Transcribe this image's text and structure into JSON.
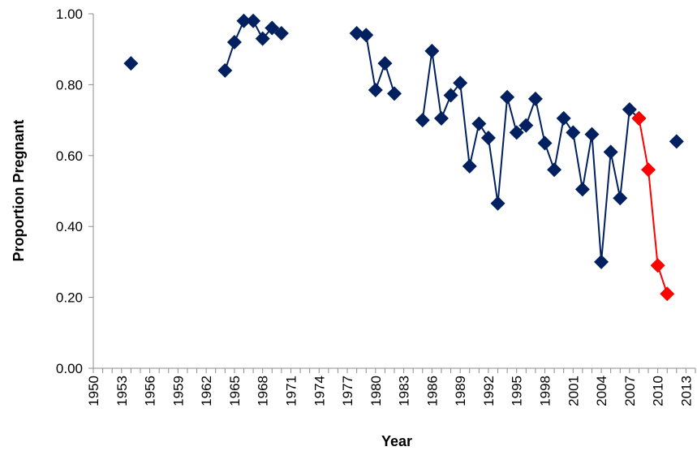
{
  "chart_data": {
    "type": "line",
    "xlabel": "Year",
    "ylabel": "Proportion Pregnant",
    "xlim": [
      1950,
      2014
    ],
    "ylim": [
      0,
      1.0
    ],
    "x_ticks": [
      1950,
      1953,
      1956,
      1959,
      1962,
      1965,
      1968,
      1971,
      1974,
      1977,
      1980,
      1983,
      1986,
      1989,
      1992,
      1995,
      1998,
      2001,
      2004,
      2007,
      2010,
      2013
    ],
    "y_ticks": [
      0.0,
      0.2,
      0.4,
      0.6,
      0.8,
      1.0
    ],
    "x_tick_labels": [
      "1950",
      "1953",
      "1956",
      "1959",
      "1962",
      "1965",
      "1968",
      "1971",
      "1974",
      "1977",
      "1980",
      "1983",
      "1986",
      "1989",
      "1992",
      "1995",
      "1998",
      "2001",
      "2004",
      "2007",
      "2010",
      "2013"
    ],
    "y_tick_labels": [
      "0.00",
      "0.20",
      "0.40",
      "0.60",
      "0.80",
      "1.00"
    ],
    "grid": false,
    "legend": "none",
    "series": [
      {
        "color": "#002060",
        "marker": "diamond",
        "segments": [
          [
            [
              1954,
              0.86
            ]
          ],
          [
            [
              1964,
              0.84
            ],
            [
              1965,
              0.92
            ],
            [
              1966,
              0.98
            ],
            [
              1967,
              0.98
            ],
            [
              1968,
              0.93
            ],
            [
              1969,
              0.96
            ],
            [
              1970,
              0.945
            ]
          ],
          [
            [
              1978,
              0.945
            ],
            [
              1979,
              0.94
            ],
            [
              1980,
              0.785
            ],
            [
              1981,
              0.86
            ],
            [
              1982,
              0.775
            ]
          ],
          [
            [
              1985,
              0.7
            ],
            [
              1986,
              0.895
            ],
            [
              1987,
              0.705
            ],
            [
              1988,
              0.77
            ],
            [
              1989,
              0.805
            ],
            [
              1990,
              0.57
            ],
            [
              1991,
              0.69
            ],
            [
              1992,
              0.65
            ],
            [
              1993,
              0.465
            ],
            [
              1994,
              0.765
            ],
            [
              1995,
              0.665
            ],
            [
              1996,
              0.685
            ],
            [
              1997,
              0.76
            ],
            [
              1998,
              0.635
            ],
            [
              1999,
              0.56
            ],
            [
              2000,
              0.705
            ],
            [
              2001,
              0.665
            ],
            [
              2002,
              0.505
            ],
            [
              2003,
              0.66
            ],
            [
              2004,
              0.3
            ],
            [
              2005,
              0.61
            ],
            [
              2006,
              0.48
            ],
            [
              2007,
              0.73
            ],
            [
              2008,
              0.705
            ]
          ],
          [
            [
              2012,
              0.64
            ]
          ]
        ]
      },
      {
        "color": "#ff0000",
        "marker": "diamond",
        "segments": [
          [
            [
              2008,
              0.705
            ],
            [
              2009,
              0.56
            ],
            [
              2010,
              0.29
            ],
            [
              2011,
              0.21
            ]
          ]
        ]
      }
    ]
  }
}
